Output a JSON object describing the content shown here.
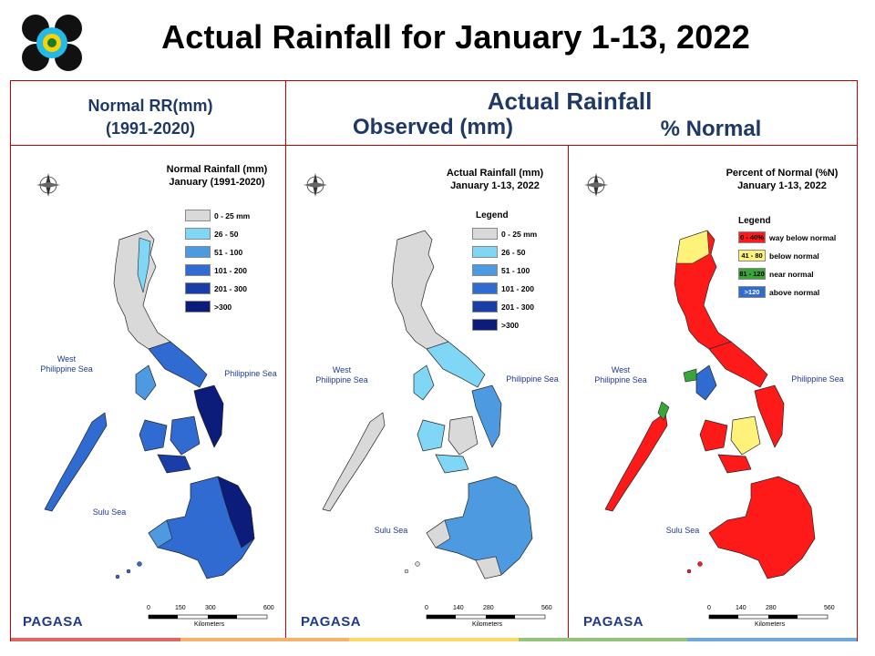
{
  "header": {
    "title": "Actual Rainfall for January 1-13, 2022"
  },
  "columns": {
    "normal_line1": "Normal RR(mm)",
    "normal_line2": "(1991-2020)",
    "actual": "Actual Rainfall",
    "observed": "Observed (mm)",
    "percent": "% Normal"
  },
  "map_normal": {
    "title_line1": "Normal Rainfall (mm)",
    "title_line2": "January (1991-2020)",
    "legend": [
      {
        "label": "0 - 25 mm",
        "color": "#d9d9d9"
      },
      {
        "label": "26 - 50",
        "color": "#7fd6f5"
      },
      {
        "label": "51 - 100",
        "color": "#4e9ae0"
      },
      {
        "label": "101 - 200",
        "color": "#2f6bd0"
      },
      {
        "label": "201 - 300",
        "color": "#1a3ea8"
      },
      {
        "label": ">300",
        "color": "#0b1c7a"
      }
    ],
    "scale": [
      "0",
      "150",
      "300",
      "600"
    ],
    "scale_unit": "Kilometers"
  },
  "map_observed": {
    "title_line1": "Actual Rainfall (mm)",
    "title_line2": "January 1-13, 2022",
    "legend_title": "Legend",
    "legend": [
      {
        "label": "0 - 25 mm",
        "color": "#d9d9d9"
      },
      {
        "label": "26 - 50",
        "color": "#7fd6f5"
      },
      {
        "label": "51 - 100",
        "color": "#4e9ae0"
      },
      {
        "label": "101 - 200",
        "color": "#2f6bd0"
      },
      {
        "label": "201 - 300",
        "color": "#1a3ea8"
      },
      {
        "label": ">300",
        "color": "#0b1c7a"
      }
    ],
    "scale": [
      "0",
      "140",
      "280",
      "560"
    ],
    "scale_unit": "Kilometers"
  },
  "map_percent": {
    "title_line1": "Percent of Normal (%N)",
    "title_line2": "January 1-13, 2022",
    "legend_title": "Legend",
    "legend": [
      {
        "range": "0 - 40%",
        "label": "way below normal",
        "color": "#ff1a1a"
      },
      {
        "range": "41 - 80",
        "label": "below normal",
        "color": "#fff27a"
      },
      {
        "range": "81 - 120",
        "label": "near normal",
        "color": "#3aa63a"
      },
      {
        "range": ">120",
        "label": "above normal",
        "color": "#2f6bd0"
      }
    ],
    "scale": [
      "0",
      "140",
      "280",
      "560"
    ],
    "scale_unit": "Kilometers"
  },
  "labels": {
    "west_sea_1": "West",
    "west_sea_2": "Philippine Sea",
    "philippine_sea": "Philippine Sea",
    "sulu_sea": "Sulu Sea",
    "compass_n": "N",
    "compass_s": "S",
    "compass_e": "E",
    "compass_w": "W",
    "brand": "PAGASA"
  },
  "colors": {
    "border": "#c00000",
    "header_text": "#1f3864",
    "bar": [
      "#e06666",
      "#f6b26b",
      "#ffd966",
      "#93c47d",
      "#6fa8dc"
    ]
  }
}
